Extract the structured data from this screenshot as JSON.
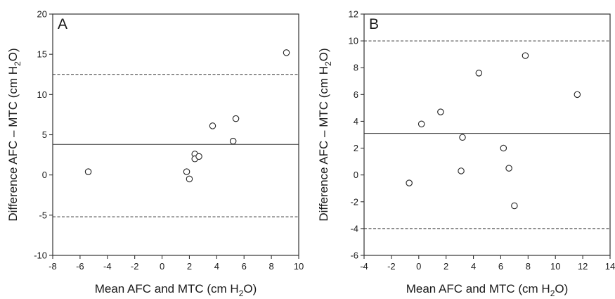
{
  "chart_data": [
    {
      "type": "scatter",
      "panel_label": "A",
      "xlabel": {
        "pre": "Mean AFC and MTC (cm H",
        "sub": "2",
        "post": "O)"
      },
      "ylabel": {
        "pre": "Difference AFC – MTC (cm H",
        "sub": "2",
        "post": "O)"
      },
      "xlim": [
        -8,
        10
      ],
      "ylim": [
        -10,
        20
      ],
      "xticks": [
        -8,
        -6,
        -4,
        -2,
        0,
        2,
        4,
        6,
        8,
        10
      ],
      "yticks": [
        -10,
        -5,
        0,
        5,
        10,
        15,
        20
      ],
      "xtick_labels": [
        "-8",
        "-6",
        "-4",
        "-2",
        "0",
        "2",
        "4",
        "6",
        "8",
        "10"
      ],
      "ytick_labels": [
        "-10",
        "-5",
        "0",
        "5",
        "10",
        "15",
        "20"
      ],
      "mean_line": 3.8,
      "limits_of_agreement": [
        12.5,
        -5.2
      ],
      "points": [
        {
          "x": -5.4,
          "y": 0.4
        },
        {
          "x": 1.8,
          "y": 0.4
        },
        {
          "x": 2.0,
          "y": -0.5
        },
        {
          "x": 2.4,
          "y": 2.6
        },
        {
          "x": 2.4,
          "y": 2.0
        },
        {
          "x": 2.7,
          "y": 2.3
        },
        {
          "x": 3.7,
          "y": 6.1
        },
        {
          "x": 5.2,
          "y": 4.2
        },
        {
          "x": 5.4,
          "y": 7.0
        },
        {
          "x": 9.1,
          "y": 15.2
        }
      ],
      "grid": false,
      "legend": "none"
    },
    {
      "type": "scatter",
      "panel_label": "B",
      "xlabel": {
        "pre": "Mean AFC and MTC (cm H",
        "sub": "2",
        "post": "O)"
      },
      "ylabel": {
        "pre": "Difference AFC – MTC (cm H",
        "sub": "2",
        "post": "O)"
      },
      "xlim": [
        -4,
        14
      ],
      "ylim": [
        -6,
        12
      ],
      "xticks": [
        -4,
        -2,
        0,
        2,
        4,
        6,
        8,
        10,
        12,
        14
      ],
      "yticks": [
        -6,
        -4,
        -2,
        0,
        2,
        4,
        6,
        8,
        10,
        12
      ],
      "xtick_labels": [
        "-4",
        "-2",
        "0",
        "2",
        "4",
        "6",
        "8",
        "10",
        "12",
        "14"
      ],
      "ytick_labels": [
        "-6",
        "-4",
        "-2",
        "0",
        "2",
        "4",
        "6",
        "8",
        "10",
        "12"
      ],
      "mean_line": 3.1,
      "limits_of_agreement": [
        10.0,
        -4.0
      ],
      "points": [
        {
          "x": -0.7,
          "y": -0.6
        },
        {
          "x": 0.2,
          "y": 3.8
        },
        {
          "x": 1.6,
          "y": 4.7
        },
        {
          "x": 3.1,
          "y": 0.3
        },
        {
          "x": 3.2,
          "y": 2.8
        },
        {
          "x": 4.4,
          "y": 7.6
        },
        {
          "x": 6.2,
          "y": 2.0
        },
        {
          "x": 6.6,
          "y": 0.5
        },
        {
          "x": 7.0,
          "y": -2.3
        },
        {
          "x": 7.8,
          "y": 8.9
        },
        {
          "x": 11.6,
          "y": 6.0
        }
      ],
      "grid": false,
      "legend": "none"
    }
  ]
}
